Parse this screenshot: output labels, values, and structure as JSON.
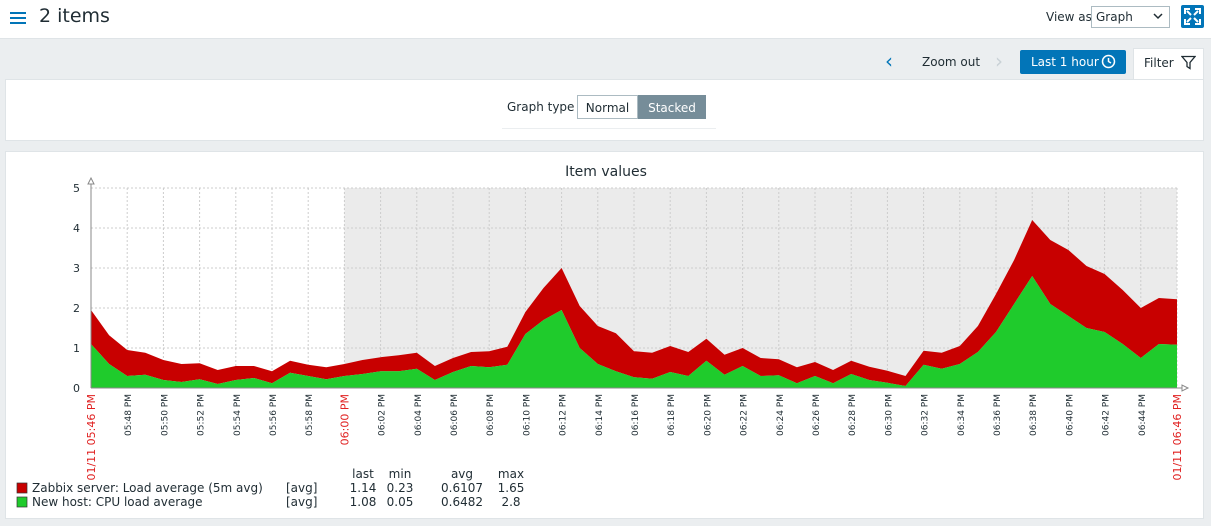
{
  "header": {
    "title": "2 items",
    "view_as_label": "View as",
    "view_as_value": "Graph",
    "icons": {
      "menu": "hamburger-icon",
      "fullscreen": "fullscreen-icon"
    }
  },
  "timebar": {
    "zoom_out_label": "Zoom out",
    "period_label": "Last 1 hour",
    "filter_label": "Filter"
  },
  "filter": {
    "graph_type_label": "Graph type",
    "options": [
      "Normal",
      "Stacked"
    ],
    "selected": "Stacked"
  },
  "colors": {
    "accent": "#0275b8",
    "series_red": "#c80000",
    "series_green": "#1fcb2c",
    "highlight_time": "#e02020"
  },
  "chart_data": {
    "type": "area",
    "stacked": true,
    "title": "Item values",
    "ylim": [
      0,
      5
    ],
    "y_ticks": [
      "0",
      "1",
      "2",
      "3",
      "4",
      "5"
    ],
    "x_tick_labels": [
      "01/11 05:46 PM",
      "05:48 PM",
      "05:50 PM",
      "05:52 PM",
      "05:54 PM",
      "05:56 PM",
      "05:58 PM",
      "06:00 PM",
      "06:02 PM",
      "06:04 PM",
      "06:06 PM",
      "06:08 PM",
      "06:10 PM",
      "06:12 PM",
      "06:14 PM",
      "06:16 PM",
      "06:18 PM",
      "06:20 PM",
      "06:22 PM",
      "06:24 PM",
      "06:26 PM",
      "06:28 PM",
      "06:30 PM",
      "06:32 PM",
      "06:34 PM",
      "06:36 PM",
      "06:38 PM",
      "06:40 PM",
      "06:42 PM",
      "06:44 PM",
      "01/11 06:46 PM"
    ],
    "highlighted_ticks": [
      "01/11 05:46 PM",
      "06:00 PM",
      "01/11 06:46 PM"
    ],
    "grid": true,
    "x_minutes": [
      0,
      1,
      2,
      3,
      4,
      5,
      6,
      7,
      8,
      9,
      10,
      11,
      12,
      13,
      14,
      15,
      16,
      17,
      18,
      19,
      20,
      21,
      22,
      23,
      24,
      25,
      26,
      27,
      28,
      29,
      30,
      31,
      32,
      33,
      34,
      35,
      36,
      37,
      38,
      39,
      40,
      41,
      42,
      43,
      44,
      45,
      46,
      47,
      48,
      49,
      50,
      51,
      52,
      53,
      54,
      55,
      56,
      57,
      58,
      59,
      60
    ],
    "series": [
      {
        "name": "New host: CPU load average",
        "values": [
          1.1,
          0.6,
          0.3,
          0.33,
          0.2,
          0.15,
          0.22,
          0.1,
          0.2,
          0.25,
          0.12,
          0.38,
          0.3,
          0.22,
          0.3,
          0.35,
          0.42,
          0.42,
          0.48,
          0.2,
          0.4,
          0.55,
          0.52,
          0.58,
          1.35,
          1.7,
          1.95,
          1.0,
          0.6,
          0.42,
          0.27,
          0.23,
          0.4,
          0.3,
          0.68,
          0.33,
          0.55,
          0.3,
          0.32,
          0.12,
          0.3,
          0.12,
          0.35,
          0.2,
          0.13,
          0.05,
          0.58,
          0.48,
          0.6,
          0.9,
          1.4,
          2.1,
          2.8,
          2.1,
          1.8,
          1.5,
          1.4,
          1.1,
          0.75,
          1.1,
          1.08
        ]
      },
      {
        "name": "Zabbix server: Load average (5m avg)",
        "values": [
          0.85,
          0.72,
          0.65,
          0.55,
          0.5,
          0.45,
          0.4,
          0.35,
          0.35,
          0.3,
          0.3,
          0.3,
          0.28,
          0.3,
          0.3,
          0.35,
          0.35,
          0.4,
          0.4,
          0.35,
          0.35,
          0.35,
          0.4,
          0.45,
          0.55,
          0.8,
          1.05,
          1.05,
          0.95,
          0.95,
          0.65,
          0.65,
          0.65,
          0.6,
          0.55,
          0.5,
          0.45,
          0.45,
          0.4,
          0.4,
          0.35,
          0.33,
          0.33,
          0.33,
          0.3,
          0.25,
          0.35,
          0.4,
          0.45,
          0.65,
          0.95,
          1.1,
          1.4,
          1.6,
          1.65,
          1.55,
          1.45,
          1.35,
          1.25,
          1.15,
          1.14
        ]
      }
    ]
  },
  "legend": {
    "headers": [
      "last",
      "min",
      "avg",
      "max"
    ],
    "rows": [
      {
        "name": "Zabbix server: Load average (5m avg)",
        "func": "[avg]",
        "last": "1.14",
        "min": "0.23",
        "avg": "0.6107",
        "max": "1.65",
        "color": "#c80000"
      },
      {
        "name": "New host: CPU load average",
        "func": "[avg]",
        "last": "1.08",
        "min": "0.05",
        "avg": "0.6482",
        "max": "2.8",
        "color": "#1fcb2c"
      }
    ]
  }
}
